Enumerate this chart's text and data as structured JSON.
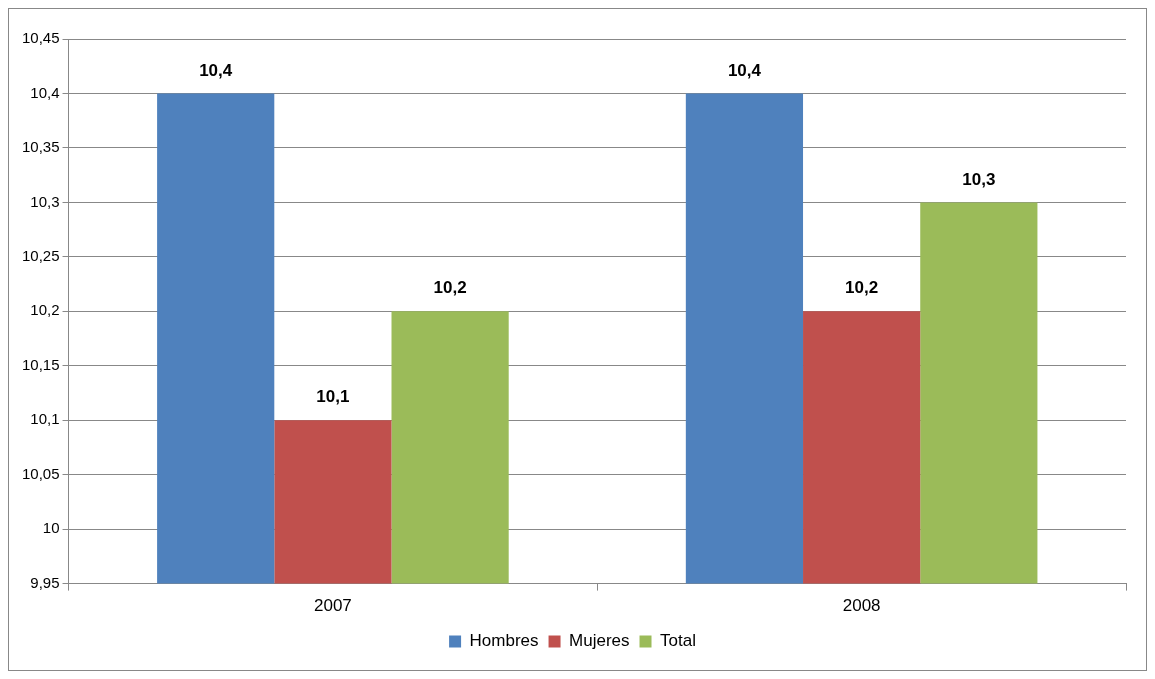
{
  "chart_data": {
    "type": "bar",
    "categories": [
      "2007",
      "2008"
    ],
    "series": [
      {
        "name": "Hombres",
        "color": "#4f81bd",
        "values": [
          10.4,
          10.4
        ],
        "value_labels": [
          "10,4",
          "10,4"
        ]
      },
      {
        "name": "Mujeres",
        "color": "#c0504d",
        "values": [
          10.1,
          10.2
        ],
        "value_labels": [
          "10,1",
          "10,2"
        ]
      },
      {
        "name": "Total",
        "color": "#9bbb59",
        "values": [
          10.2,
          10.3
        ],
        "value_labels": [
          "10,2",
          "10,3"
        ]
      }
    ],
    "ylim": [
      9.95,
      10.45
    ],
    "yticks": [
      {
        "value": 9.95,
        "label": "9,95"
      },
      {
        "value": 10,
        "label": "10"
      },
      {
        "value": 10.05,
        "label": "10,05"
      },
      {
        "value": 10.1,
        "label": "10,1"
      },
      {
        "value": 10.15,
        "label": "10,15"
      },
      {
        "value": 10.2,
        "label": "10,2"
      },
      {
        "value": 10.25,
        "label": "10,25"
      },
      {
        "value": 10.3,
        "label": "10,3"
      },
      {
        "value": 10.35,
        "label": "10,35"
      },
      {
        "value": 10.4,
        "label": "10,4"
      },
      {
        "value": 10.45,
        "label": "10,45"
      }
    ],
    "grid": "y",
    "legend": "bottom"
  }
}
